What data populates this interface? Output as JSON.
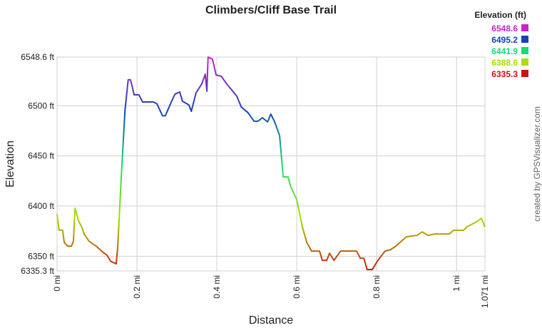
{
  "chart_data": {
    "type": "line",
    "title": "Climbers/Cliff Base Trail",
    "x_label": "Distance",
    "y_label": "Elevation",
    "credit": "created by GPSVisualizer.com",
    "legend_title": "Elevation (ft)",
    "color_scale": [
      {
        "value": 6548.6,
        "color": "#cc22cc"
      },
      {
        "value": 6495.2,
        "color": "#1144bb"
      },
      {
        "value": 6441.9,
        "color": "#11dd77"
      },
      {
        "value": 6388.6,
        "color": "#aadd00"
      },
      {
        "value": 6335.3,
        "color": "#cc1111"
      }
    ],
    "x": [
      0,
      0.005,
      0.014,
      0.018,
      0.027,
      0.036,
      0.041,
      0.045,
      0.054,
      0.062,
      0.068,
      0.08,
      0.098,
      0.112,
      0.125,
      0.134,
      0.148,
      0.152,
      0.161,
      0.17,
      0.178,
      0.184,
      0.193,
      0.205,
      0.214,
      0.241,
      0.25,
      0.264,
      0.271,
      0.286,
      0.295,
      0.307,
      0.314,
      0.33,
      0.336,
      0.348,
      0.362,
      0.371,
      0.375,
      0.378,
      0.389,
      0.398,
      0.411,
      0.425,
      0.437,
      0.45,
      0.461,
      0.478,
      0.493,
      0.503,
      0.514,
      0.527,
      0.535,
      0.544,
      0.557,
      0.566,
      0.578,
      0.585,
      0.6,
      0.614,
      0.625,
      0.637,
      0.657,
      0.664,
      0.675,
      0.682,
      0.693,
      0.71,
      0.75,
      0.759,
      0.768,
      0.776,
      0.789,
      0.803,
      0.821,
      0.835,
      0.848,
      0.862,
      0.875,
      0.901,
      0.914,
      0.928,
      0.946,
      0.982,
      0.992,
      1.017,
      1.026,
      1.053,
      1.062,
      1.071
    ],
    "values": [
      6392,
      6376,
      6376,
      6363.7,
      6360,
      6360,
      6365,
      6397.8,
      6385,
      6379,
      6372,
      6365,
      6360,
      6355,
      6351,
      6345,
      6342.4,
      6360,
      6431,
      6495,
      6525.9,
      6525.9,
      6510.9,
      6510.9,
      6503.8,
      6503.8,
      6502,
      6490,
      6490,
      6503.8,
      6511.6,
      6513.8,
      6504.5,
      6500.9,
      6494.5,
      6513,
      6521.6,
      6531.5,
      6514.5,
      6548.6,
      6546.5,
      6530.8,
      6529.4,
      6521.6,
      6515.9,
      6509.5,
      6498.8,
      6493.1,
      6484.6,
      6484.6,
      6488.1,
      6483.9,
      6491.7,
      6484.6,
      6470.4,
      6429.1,
      6429.1,
      6419.2,
      6406.4,
      6379.3,
      6363.7,
      6355.1,
      6355.1,
      6345.9,
      6345.9,
      6353,
      6345.9,
      6355.1,
      6355.1,
      6348,
      6348,
      6336.7,
      6336.7,
      6345.9,
      6355.1,
      6356.6,
      6360.1,
      6365.1,
      6369.4,
      6370.8,
      6374.3,
      6370.8,
      6372.2,
      6372.2,
      6375.8,
      6375.8,
      6379.3,
      6385,
      6387.9,
      6379.3
    ],
    "xlim": [
      0,
      1.071
    ],
    "ylim": [
      6335.3,
      6548.6
    ],
    "xticks": [
      {
        "value": 0,
        "label": "0 mi"
      },
      {
        "value": 0.2,
        "label": "0.2 mi"
      },
      {
        "value": 0.4,
        "label": "0.4 mi"
      },
      {
        "value": 0.6,
        "label": "0.6 mi"
      },
      {
        "value": 0.8,
        "label": "0.8 mi"
      },
      {
        "value": 1,
        "label": "1 mi"
      },
      {
        "value": 1.071,
        "label": "1.071 mi"
      }
    ],
    "yticks": [
      {
        "value": 6335.3,
        "label": "6335.3 ft"
      },
      {
        "value": 6350,
        "label": "6350 ft"
      },
      {
        "value": 6400,
        "label": "6400 ft"
      },
      {
        "value": 6450,
        "label": "6450 ft"
      },
      {
        "value": 6500,
        "label": "6500 ft"
      },
      {
        "value": 6548.6,
        "label": "6548.6 ft"
      }
    ],
    "grid": true
  }
}
